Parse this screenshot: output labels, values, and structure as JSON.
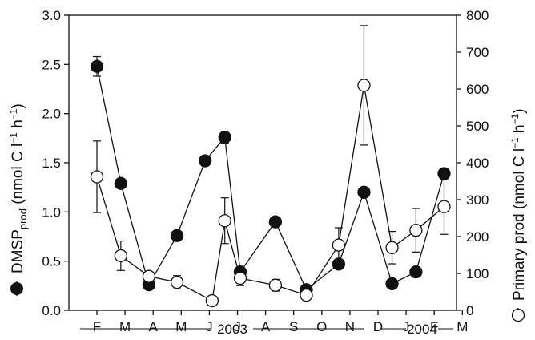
{
  "chart_data": {
    "type": "line",
    "x_tick_labels": [
      "F",
      "M",
      "A",
      "M",
      "J",
      "J",
      "A",
      "S",
      "O",
      "N",
      "D",
      "J",
      "F",
      "M"
    ],
    "year_labels": [
      "2003",
      "2004"
    ],
    "y_left": {
      "label_main": "DMSP",
      "label_sub": "prod",
      "label_unit_prefix": " (nmol C l",
      "label_sup": "−1",
      "label_unit_mid": " h",
      "label_unit_end": ")",
      "range": [
        0,
        3.0
      ],
      "ticks": [
        "0.0",
        "0.5",
        "1.0",
        "1.5",
        "2.0",
        "2.5",
        "3.0"
      ]
    },
    "y_right": {
      "label_main": "Primary prod",
      "label_unit_prefix": " (nmol C l",
      "label_sup": "−1",
      "label_unit_mid": " h",
      "label_unit_end": ")",
      "range": [
        0,
        800
      ],
      "ticks": [
        "0",
        "100",
        "200",
        "300",
        "400",
        "500",
        "600",
        "700",
        "800"
      ]
    },
    "series": [
      {
        "axis": "left",
        "marker": "filled-circle",
        "points": [
          {
            "x": 1.0,
            "y": 2.48,
            "err": 0.1
          },
          {
            "x": 1.85,
            "y": 1.29
          },
          {
            "x": 2.85,
            "y": 0.26,
            "err": 0.04
          },
          {
            "x": 3.85,
            "y": 0.76
          },
          {
            "x": 4.85,
            "y": 1.52,
            "err": 0.05
          },
          {
            "x": 5.55,
            "y": 1.76,
            "err": 0.06
          },
          {
            "x": 6.1,
            "y": 0.39
          },
          {
            "x": 7.35,
            "y": 0.9
          },
          {
            "x": 8.45,
            "y": 0.21
          },
          {
            "x": 9.6,
            "y": 0.47
          },
          {
            "x": 10.5,
            "y": 1.2
          },
          {
            "x": 11.5,
            "y": 0.27
          },
          {
            "x": 12.35,
            "y": 0.39
          },
          {
            "x": 13.35,
            "y": 1.39,
            "err": 0.05
          }
        ]
      },
      {
        "axis": "right",
        "marker": "open-circle",
        "points": [
          {
            "x": 1.0,
            "y": 362,
            "err": 97
          },
          {
            "x": 1.85,
            "y": 148,
            "err": 40
          },
          {
            "x": 2.85,
            "y": 92,
            "err": 12
          },
          {
            "x": 3.85,
            "y": 76,
            "err": 18
          },
          {
            "x": 5.1,
            "y": 26
          },
          {
            "x": 5.55,
            "y": 243,
            "err": 62
          },
          {
            "x": 6.1,
            "y": 87,
            "err": 20
          },
          {
            "x": 7.35,
            "y": 68,
            "err": 16
          },
          {
            "x": 8.45,
            "y": 41,
            "err": 8
          },
          {
            "x": 9.6,
            "y": 177,
            "err": 47
          },
          {
            "x": 10.5,
            "y": 610,
            "err": 162
          },
          {
            "x": 11.5,
            "y": 170,
            "err": 44
          },
          {
            "x": 12.35,
            "y": 217,
            "err": 59
          },
          {
            "x": 13.35,
            "y": 281,
            "err": 75
          }
        ]
      }
    ]
  }
}
